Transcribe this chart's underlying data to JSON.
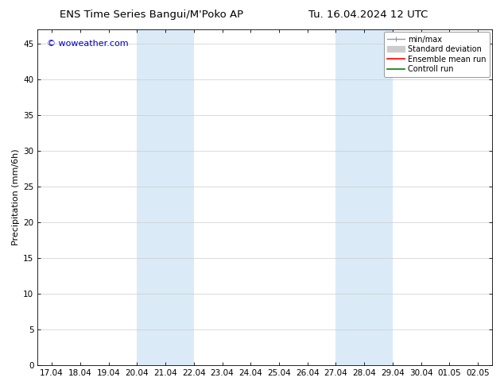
{
  "title": "ENS Time Series Bangui/M'Poko AP",
  "title2": "Tu. 16.04.2024 12 UTC",
  "ylabel": "Precipitation (mm/6h)",
  "watermark": "© woweather.com",
  "x_tick_labels": [
    "17.04",
    "18.04",
    "19.04",
    "20.04",
    "21.04",
    "22.04",
    "23.04",
    "24.04",
    "25.04",
    "26.04",
    "27.04",
    "28.04",
    "29.04",
    "30.04",
    "01.05",
    "02.05"
  ],
  "x_tick_positions": [
    0,
    1,
    2,
    3,
    4,
    5,
    6,
    7,
    8,
    9,
    10,
    11,
    12,
    13,
    14,
    15
  ],
  "ylim": [
    0,
    47
  ],
  "yticks": [
    0,
    5,
    10,
    15,
    20,
    25,
    30,
    35,
    40,
    45
  ],
  "shaded_regions": [
    {
      "x_start": 3,
      "x_end": 5,
      "color": "#daeaf7"
    },
    {
      "x_start": 10,
      "x_end": 12,
      "color": "#daeaf7"
    }
  ],
  "legend_entries": [
    {
      "label": "min/max",
      "color": "#999999",
      "lw": 1.0
    },
    {
      "label": "Standard deviation",
      "color": "#cccccc",
      "lw": 6
    },
    {
      "label": "Ensemble mean run",
      "color": "#ff0000",
      "lw": 1.2
    },
    {
      "label": "Controll run",
      "color": "#008000",
      "lw": 1.2
    }
  ],
  "background_color": "#ffffff",
  "plot_bg_color": "#ffffff",
  "grid_color": "#cccccc",
  "tick_color": "#000000",
  "title_fontsize": 9.5,
  "axis_label_fontsize": 8,
  "tick_fontsize": 7.5,
  "watermark_color": "#0000cc",
  "watermark_fontsize": 8,
  "legend_fontsize": 7
}
